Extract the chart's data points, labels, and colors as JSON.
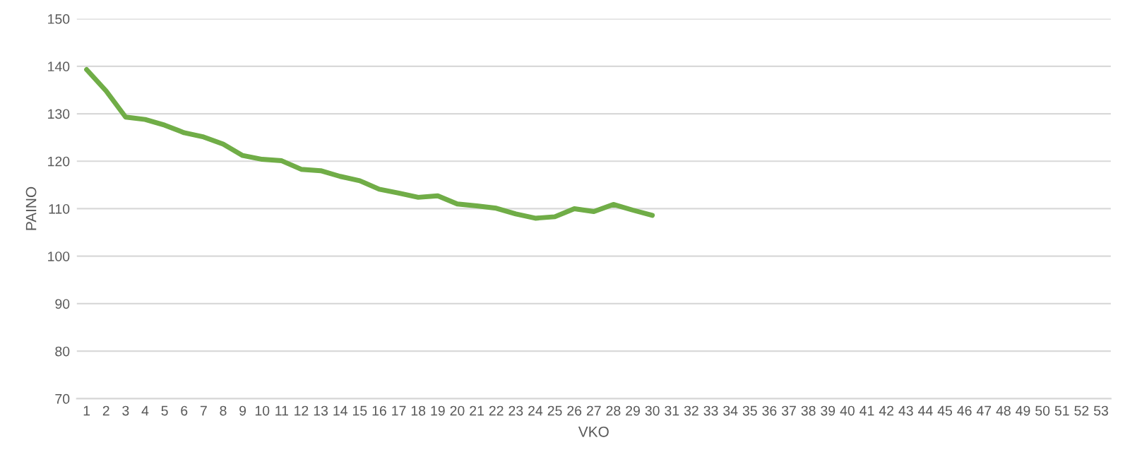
{
  "chart_data": {
    "type": "line",
    "xlabel": "VKO",
    "ylabel": "PAINO",
    "categories": [
      "1",
      "2",
      "3",
      "4",
      "5",
      "6",
      "7",
      "8",
      "9",
      "10",
      "11",
      "12",
      "13",
      "14",
      "15",
      "16",
      "17",
      "18",
      "19",
      "20",
      "21",
      "22",
      "23",
      "24",
      "25",
      "26",
      "27",
      "28",
      "29",
      "30",
      "31",
      "32",
      "33",
      "34",
      "35",
      "36",
      "37",
      "38",
      "39",
      "40",
      "41",
      "42",
      "43",
      "44",
      "45",
      "46",
      "47",
      "48",
      "49",
      "50",
      "51",
      "52",
      "53"
    ],
    "series": [
      {
        "color": "#70ad47",
        "values": [
          139.3,
          134.8,
          129.3,
          128.8,
          127.6,
          126.0,
          125.1,
          123.6,
          121.2,
          120.4,
          120.1,
          118.3,
          118.0,
          116.8,
          115.9,
          114.1,
          113.3,
          112.4,
          112.7,
          111.0,
          110.6,
          110.1,
          108.9,
          108.0,
          108.3,
          110.0,
          109.4,
          110.9,
          109.7,
          108.6,
          null,
          null,
          null,
          null,
          null,
          null,
          null,
          null,
          null,
          null,
          null,
          null,
          null,
          null,
          null,
          null,
          null,
          null,
          null,
          null,
          null,
          null,
          null
        ]
      }
    ],
    "ylim": [
      70,
      150
    ],
    "yticks": [
      70,
      80,
      90,
      100,
      110,
      120,
      130,
      140,
      150
    ],
    "grid": "y",
    "marker": "none",
    "line_style": "solid"
  }
}
